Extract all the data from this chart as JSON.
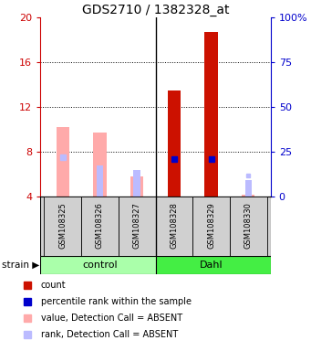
{
  "title": "GDS2710 / 1382328_at",
  "samples": [
    "GSM108325",
    "GSM108326",
    "GSM108327",
    "GSM108328",
    "GSM108329",
    "GSM108330"
  ],
  "ylim_left": [
    4,
    20
  ],
  "ylim_right": [
    0,
    100
  ],
  "yticks_left": [
    4,
    8,
    12,
    16,
    20
  ],
  "yticks_right": [
    0,
    25,
    50,
    75,
    100
  ],
  "ytick_labels_right": [
    "0",
    "25",
    "50",
    "75",
    "100%"
  ],
  "bar_absent_values": [
    10.2,
    9.7,
    5.8,
    null,
    null,
    4.2
  ],
  "bar_absent_ranks_y": [
    null,
    6.8,
    6.4,
    null,
    null,
    5.5
  ],
  "bar_present_values": [
    null,
    null,
    null,
    13.5,
    18.7,
    null
  ],
  "bar_present_ranks_y": [
    null,
    null,
    null,
    7.35,
    7.5,
    null
  ],
  "absent_rank_marker_pct": [
    22,
    null,
    null,
    null,
    null,
    null
  ],
  "absent_rank_bar_pct_y": [
    null,
    17,
    16,
    null,
    null,
    12
  ],
  "present_rank_marker_pct": [
    null,
    null,
    null,
    21,
    21,
    null
  ],
  "color_absent_bar": "#ffaaaa",
  "color_absent_rank_bar": "#bbbbff",
  "color_present_bar": "#cc1100",
  "color_present_rank": "#0000cc",
  "color_left_axis": "#cc0000",
  "color_right_axis": "#0000cc",
  "group_control_color": "#aaffaa",
  "group_dahl_color": "#44ee44",
  "bar_width": 0.35,
  "rank_bar_width": 0.18,
  "x_positions": [
    0,
    1,
    2,
    3,
    4,
    5
  ]
}
